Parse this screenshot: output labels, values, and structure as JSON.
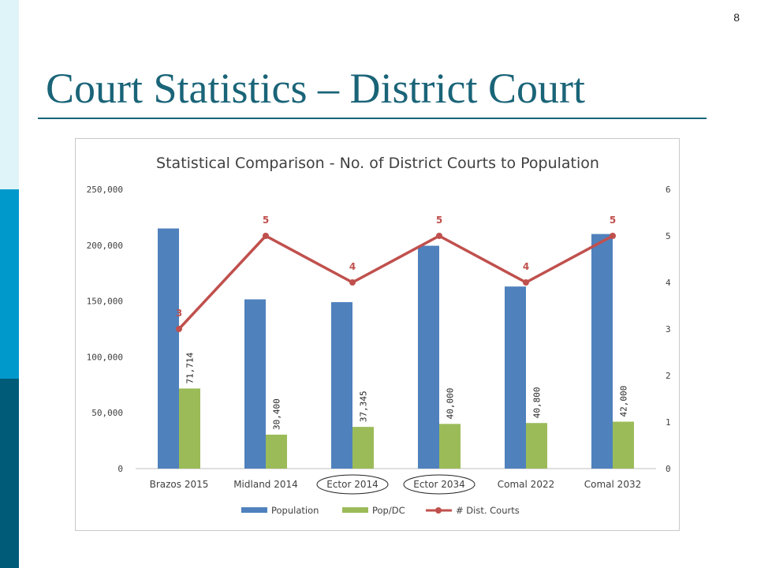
{
  "slide": {
    "number": "8",
    "title": "Court Statistics – District Court",
    "colors": {
      "title": "#1a6478",
      "band_light": "#dff4f8",
      "band_mid": "#0099cc",
      "band_dark": "#005b78"
    }
  },
  "chart_data": {
    "type": "bar",
    "title": "Statistical Comparison - No. of District Courts to Population",
    "categories": [
      "Brazos 2015",
      "Midland 2014",
      "Ector 2014",
      "Ector 2034",
      "Comal 2022",
      "Comal 2032"
    ],
    "circled_categories": [
      "Ector 2014",
      "Ector 2034"
    ],
    "series": [
      {
        "name": "Population",
        "type": "bar",
        "axis": "left",
        "color": "#4f81bd",
        "values": [
          215000,
          151500,
          149000,
          199500,
          163000,
          210000
        ]
      },
      {
        "name": "Pop/DC",
        "type": "bar",
        "axis": "left",
        "color": "#9bbb59",
        "values": [
          71714,
          30400,
          37345,
          40000,
          40800,
          42000
        ],
        "labels": [
          "71,714",
          "30,400",
          "37,345",
          "40,000",
          "40,800",
          "42,000"
        ]
      },
      {
        "name": "# Dist. Courts",
        "type": "line",
        "axis": "right",
        "color": "#c0504d",
        "values": [
          3,
          5,
          4,
          5,
          4,
          5
        ],
        "labels": [
          "3",
          "5",
          "4",
          "5",
          "4",
          "5"
        ]
      }
    ],
    "y_left": {
      "range": [
        0,
        250000
      ],
      "ticks": [
        "0",
        "50,000",
        "100,000",
        "150,000",
        "200,000",
        "250,000"
      ],
      "tick_values": [
        0,
        50000,
        100000,
        150000,
        200000,
        250000
      ]
    },
    "y_right": {
      "range": [
        0,
        6
      ],
      "ticks": [
        "0",
        "1",
        "2",
        "3",
        "4",
        "5",
        "6"
      ],
      "tick_values": [
        0,
        1,
        2,
        3,
        4,
        5,
        6
      ]
    },
    "grid": false,
    "legend_position": "bottom"
  }
}
